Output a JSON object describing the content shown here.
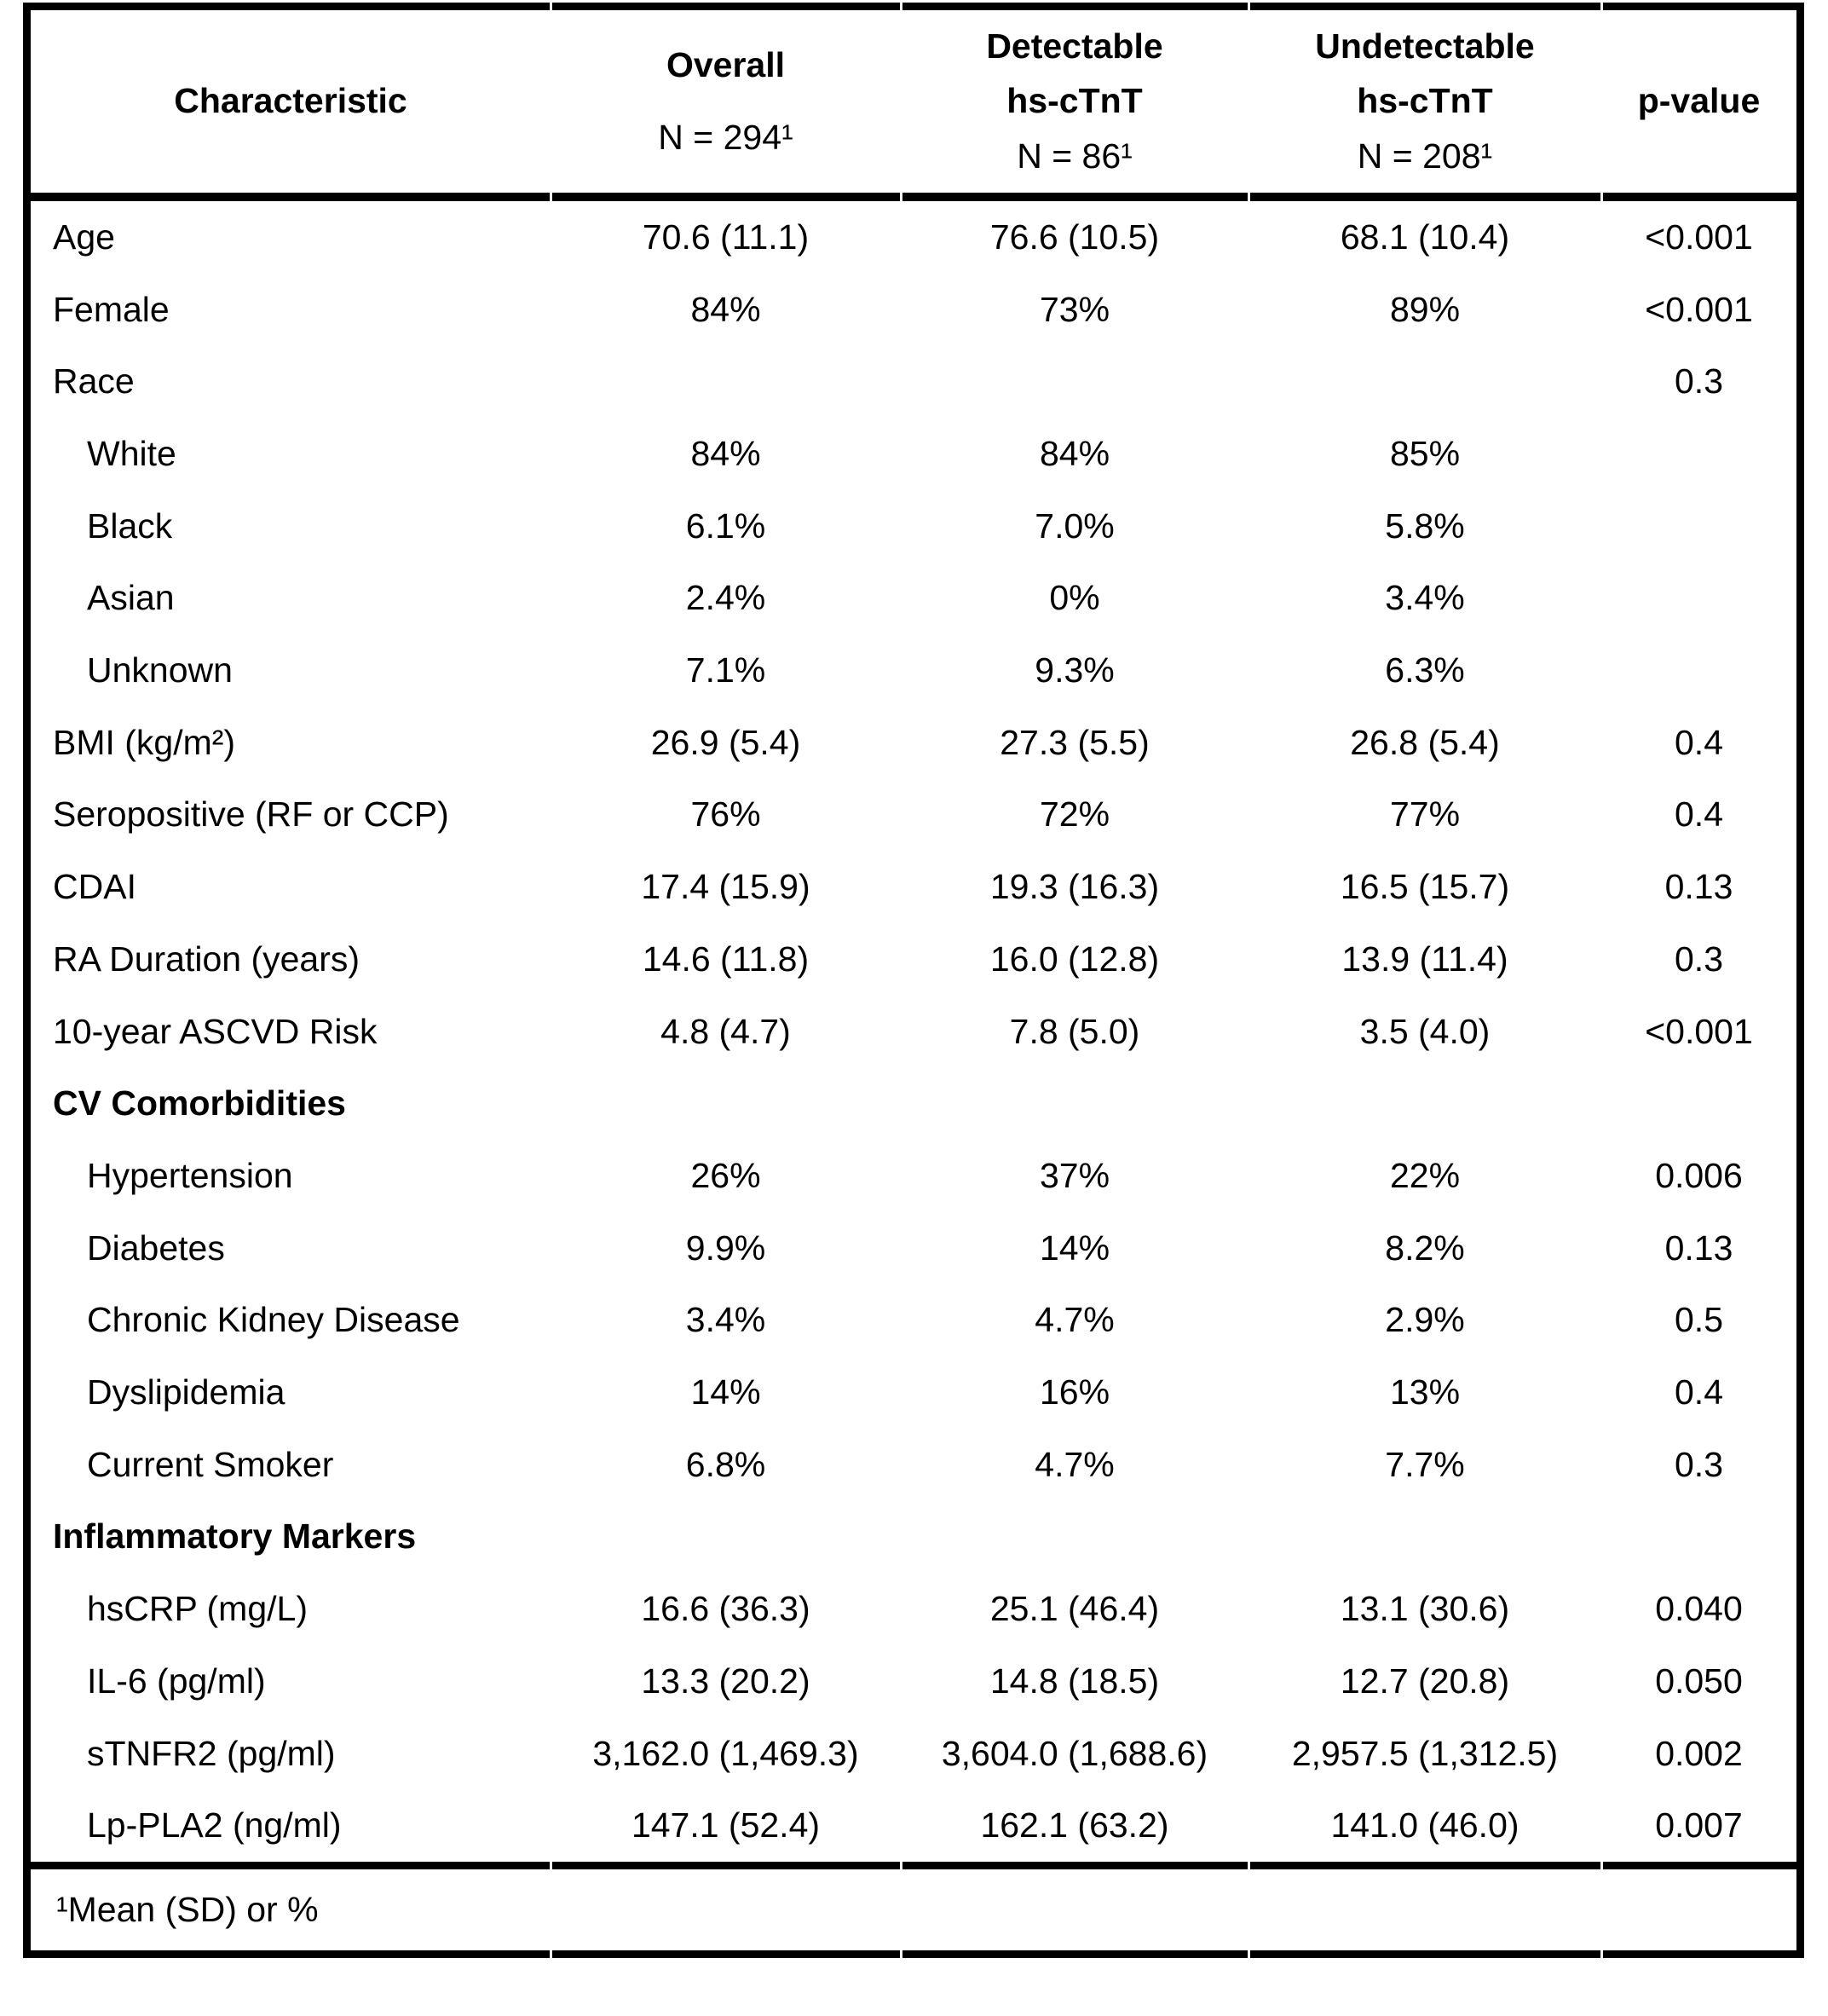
{
  "table": {
    "header": {
      "columns": [
        {
          "title_lines": [
            "Characteristic"
          ],
          "n": ""
        },
        {
          "title_lines": [
            "Overall"
          ],
          "n": "N = 294¹"
        },
        {
          "title_lines": [
            "Detectable",
            "hs-cTnT"
          ],
          "n": "N = 86¹"
        },
        {
          "title_lines": [
            "Undetectable",
            "hs-cTnT"
          ],
          "n": "N = 208¹"
        },
        {
          "title_lines": [
            "p-value"
          ],
          "n": ""
        }
      ]
    },
    "rows": [
      {
        "label": "Age",
        "indent": 0,
        "bold": false,
        "values": [
          "70.6 (11.1)",
          "76.6 (10.5)",
          "68.1 (10.4)",
          "<0.001"
        ]
      },
      {
        "label": "Female",
        "indent": 0,
        "bold": false,
        "values": [
          "84%",
          "73%",
          "89%",
          "<0.001"
        ]
      },
      {
        "label": "Race",
        "indent": 0,
        "bold": false,
        "values": [
          "",
          "",
          "",
          "0.3"
        ]
      },
      {
        "label": "White",
        "indent": 1,
        "bold": false,
        "values": [
          "84%",
          "84%",
          "85%",
          ""
        ]
      },
      {
        "label": "Black",
        "indent": 1,
        "bold": false,
        "values": [
          "6.1%",
          "7.0%",
          "5.8%",
          ""
        ]
      },
      {
        "label": "Asian",
        "indent": 1,
        "bold": false,
        "values": [
          "2.4%",
          "0%",
          "3.4%",
          ""
        ]
      },
      {
        "label": "Unknown",
        "indent": 1,
        "bold": false,
        "values": [
          "7.1%",
          "9.3%",
          "6.3%",
          ""
        ]
      },
      {
        "label": "BMI (kg/m²)",
        "indent": 0,
        "bold": false,
        "values": [
          "26.9 (5.4)",
          "27.3 (5.5)",
          "26.8 (5.4)",
          "0.4"
        ]
      },
      {
        "label": "Seropositive (RF or CCP)",
        "indent": 0,
        "bold": false,
        "values": [
          "76%",
          "72%",
          "77%",
          "0.4"
        ]
      },
      {
        "label": "CDAI",
        "indent": 0,
        "bold": false,
        "values": [
          "17.4 (15.9)",
          "19.3 (16.3)",
          "16.5 (15.7)",
          "0.13"
        ]
      },
      {
        "label": "RA Duration (years)",
        "indent": 0,
        "bold": false,
        "values": [
          "14.6 (11.8)",
          "16.0 (12.8)",
          "13.9 (11.4)",
          "0.3"
        ]
      },
      {
        "label": "10-year ASCVD Risk",
        "indent": 0,
        "bold": false,
        "values": [
          "4.8 (4.7)",
          "7.8 (5.0)",
          "3.5 (4.0)",
          "<0.001"
        ]
      },
      {
        "label": "CV Comorbidities",
        "indent": 0,
        "bold": true,
        "values": [
          "",
          "",
          "",
          ""
        ]
      },
      {
        "label": "Hypertension",
        "indent": 1,
        "bold": false,
        "values": [
          "26%",
          "37%",
          "22%",
          "0.006"
        ]
      },
      {
        "label": "Diabetes",
        "indent": 1,
        "bold": false,
        "values": [
          "9.9%",
          "14%",
          "8.2%",
          "0.13"
        ]
      },
      {
        "label": "Chronic Kidney Disease",
        "indent": 1,
        "bold": false,
        "values": [
          "3.4%",
          "4.7%",
          "2.9%",
          "0.5"
        ]
      },
      {
        "label": "Dyslipidemia",
        "indent": 1,
        "bold": false,
        "values": [
          "14%",
          "16%",
          "13%",
          "0.4"
        ]
      },
      {
        "label": "Current Smoker",
        "indent": 1,
        "bold": false,
        "values": [
          "6.8%",
          "4.7%",
          "7.7%",
          "0.3"
        ]
      },
      {
        "label": "Inflammatory Markers",
        "indent": 0,
        "bold": true,
        "values": [
          "",
          "",
          "",
          ""
        ]
      },
      {
        "label": "hsCRP (mg/L)",
        "indent": 1,
        "bold": false,
        "values": [
          "16.6 (36.3)",
          "25.1 (46.4)",
          "13.1 (30.6)",
          "0.040"
        ]
      },
      {
        "label": "IL-6 (pg/ml)",
        "indent": 1,
        "bold": false,
        "values": [
          "13.3 (20.2)",
          "14.8 (18.5)",
          "12.7 (20.8)",
          "0.050"
        ]
      },
      {
        "label": "sTNFR2 (pg/ml)",
        "indent": 1,
        "bold": false,
        "values": [
          "3,162.0 (1,469.3)",
          "3,604.0 (1,688.6)",
          "2,957.5 (1,312.5)",
          "0.002"
        ]
      },
      {
        "label": "Lp-PLA2 (ng/ml)",
        "indent": 1,
        "bold": false,
        "values": [
          "147.1 (52.4)",
          "162.1 (63.2)",
          "141.0 (46.0)",
          "0.007"
        ]
      }
    ],
    "footnote": "¹Mean (SD) or %",
    "colors": {
      "text": "#000000",
      "background": "#ffffff",
      "border": "#000000"
    }
  }
}
